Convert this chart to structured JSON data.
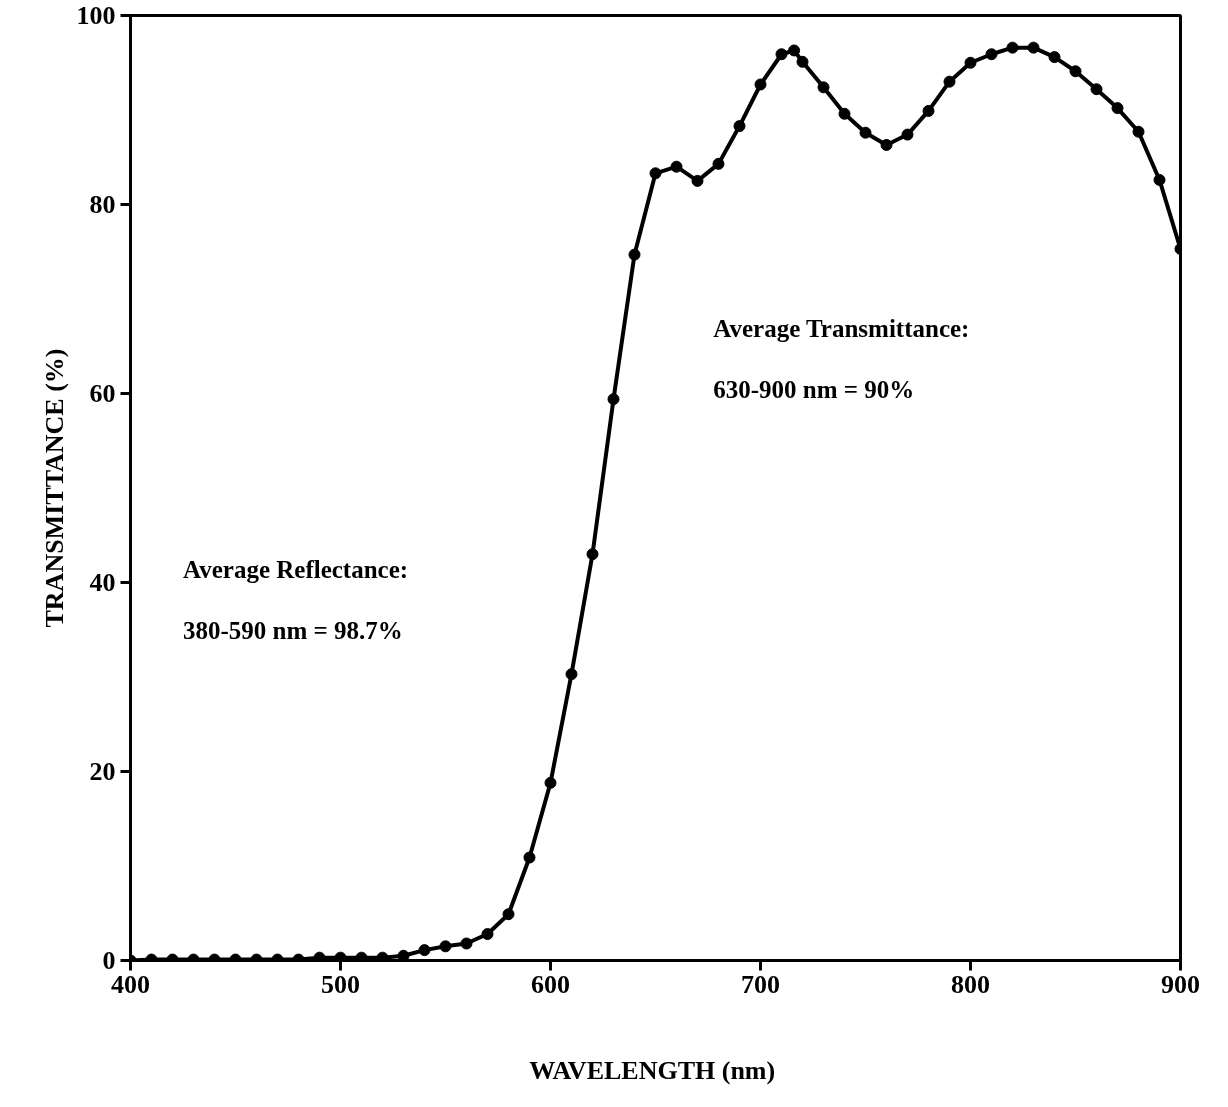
{
  "chart_data": {
    "type": "line",
    "xlabel": "WAVELENGTH  (nm)",
    "ylabel": "TRANSMITTANCE (%)",
    "x": [
      400,
      410,
      420,
      430,
      440,
      450,
      460,
      470,
      480,
      490,
      500,
      510,
      520,
      530,
      540,
      550,
      560,
      570,
      580,
      590,
      600,
      610,
      620,
      630,
      640,
      650,
      660,
      670,
      680,
      690,
      700,
      710,
      716,
      720,
      730,
      740,
      750,
      760,
      770,
      780,
      790,
      800,
      810,
      820,
      830,
      840,
      850,
      860,
      870,
      880,
      890,
      900
    ],
    "series": [
      {
        "color": "#000000",
        "values": [
          0,
          0.1,
          0.1,
          0.1,
          0.1,
          0.1,
          0.1,
          0.1,
          0.1,
          0.3,
          0.3,
          0.3,
          0.3,
          0.5,
          1.1,
          1.5,
          1.8,
          2.8,
          4.9,
          10.9,
          18.8,
          30.3,
          43,
          59.4,
          74.7,
          83.3,
          84.0,
          82.5,
          84.3,
          88.3,
          92.7,
          95.9,
          96.3,
          95.1,
          92.4,
          89.6,
          87.6,
          86.3,
          87.4,
          89.9,
          93.0,
          95.0,
          95.9,
          96.6,
          96.6,
          95.6,
          94.1,
          92.2,
          90.2,
          87.7,
          82.6,
          75.3
        ]
      }
    ],
    "xlim": [
      400,
      900
    ],
    "ylim": [
      0,
      100
    ],
    "xticks": [
      400,
      500,
      600,
      700,
      800,
      900
    ],
    "yticks": [
      0,
      20,
      40,
      60,
      80,
      100
    ],
    "marker": "circle",
    "line_style": "solid",
    "grid": false,
    "annotations": [
      "Average Reflectance:",
      "380-590 nm = 98.7%",
      "Average Transmittance:",
      "630-900 nm = 90%"
    ]
  }
}
